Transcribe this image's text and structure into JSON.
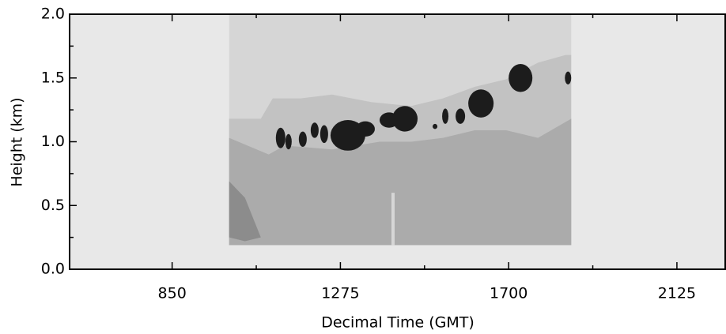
{
  "chart_data": {
    "type": "contour",
    "xlabel": "Decimal Time (GMT)",
    "ylabel": "Height (km)",
    "xlim": [
      591,
      2247
    ],
    "ylim": [
      0,
      2
    ],
    "xticks": [
      850,
      1275,
      1700,
      2125
    ],
    "xminorticks": [
      1062.5,
      1487.5,
      1912.5
    ],
    "yticks": [
      {
        "value": 0,
        "label": "0.0"
      },
      {
        "value": 0.5,
        "label": "0.5"
      },
      {
        "value": 1,
        "label": "1.0"
      },
      {
        "value": 1.5,
        "label": "1.5"
      },
      {
        "value": 2,
        "label": "2.0"
      }
    ],
    "yminorticks": [
      0.25,
      0.75,
      1.25,
      1.75
    ],
    "background": "#e8e8e8",
    "regions": [
      {
        "color": "#d6d6d6",
        "x": [
          994,
          1858,
          1858,
          994
        ],
        "y": [
          0.19,
          0.19,
          2,
          2
        ]
      },
      {
        "color": "#c2c2c2",
        "x": [
          994,
          1074,
          1104,
          1174,
          1254,
          1354,
          1454,
          1534,
          1614,
          1694,
          1774,
          1844,
          1858,
          1858,
          994
        ],
        "y": [
          1.18,
          1.18,
          1.34,
          1.34,
          1.37,
          1.31,
          1.28,
          1.34,
          1.43,
          1.49,
          1.62,
          1.68,
          1.68,
          0.19,
          0.19
        ]
      },
      {
        "color": "#ababab",
        "x": [
          994,
          1094,
          1134,
          1254,
          1374,
          1454,
          1534,
          1614,
          1694,
          1774,
          1858,
          1858,
          994
        ],
        "y": [
          1.03,
          0.9,
          0.97,
          0.94,
          1,
          1,
          1.03,
          1.09,
          1.09,
          1.03,
          1.18,
          0.19,
          0.19
        ]
      },
      {
        "color": "#8c8c8c",
        "x": [
          994,
          1034,
          1074,
          1034,
          994
        ],
        "y": [
          0.69,
          0.56,
          0.25,
          0.22,
          0.25
        ]
      },
      {
        "color": "#d6d6d6",
        "x": [
          1404,
          1412,
          1412,
          1404
        ],
        "y": [
          0.19,
          0.19,
          0.6,
          0.6
        ]
      }
    ],
    "blob_color": "#1c1c1c",
    "blobs": {
      "x": [
        1124,
        1144,
        1180,
        1210,
        1234,
        1294,
        1338,
        1398,
        1438,
        1514,
        1540,
        1578,
        1630,
        1730,
        1850
      ],
      "rx": [
        12,
        8,
        10,
        10,
        10,
        44,
        24,
        24,
        32,
        6,
        8,
        12,
        32,
        30,
        8
      ],
      "y": [
        1.03,
        1,
        1.02,
        1.09,
        1.06,
        1.05,
        1.1,
        1.17,
        1.18,
        1.12,
        1.2,
        1.2,
        1.3,
        1.5,
        1.5
      ],
      "ry": [
        0.08,
        0.06,
        0.06,
        0.06,
        0.07,
        0.12,
        0.06,
        0.06,
        0.1,
        0.02,
        0.06,
        0.06,
        0.11,
        0.11,
        0.05
      ]
    }
  }
}
